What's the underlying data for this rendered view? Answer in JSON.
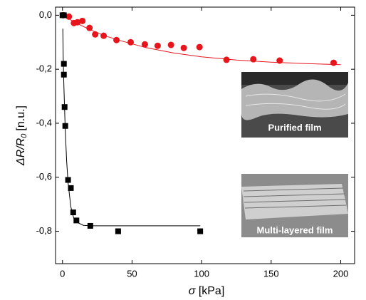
{
  "chart_data": {
    "type": "scatter",
    "x_label": {
      "symbol": "σ",
      "unit": "[kPa]"
    },
    "y_label": {
      "main": "ΔR/R",
      "sub": "0",
      "unit": "[n.u.]"
    },
    "xlim": [
      -5,
      210
    ],
    "ylim": [
      0.03,
      -0.92
    ],
    "xticks": [
      0,
      50,
      100,
      150,
      200
    ],
    "yticks": [
      {
        "value": 0,
        "label": "0,0"
      },
      {
        "value": -0.2,
        "label": "-0,2"
      },
      {
        "value": -0.4,
        "label": "-0,4"
      },
      {
        "value": -0.6,
        "label": "-0,6"
      },
      {
        "value": -0.8,
        "label": "-0,8"
      }
    ],
    "series": [
      {
        "color": "#e8141c",
        "marker": "circle",
        "x": [
          0.5,
          4.6,
          8.2,
          10.7,
          14.3,
          19.4,
          23.5,
          29.6,
          38.8,
          49,
          59.2,
          68.4,
          78,
          87.2,
          98.5,
          117.9,
          137.2,
          156.1,
          194.9
        ],
        "values": [
          0,
          -0.005,
          -0.029,
          -0.026,
          -0.021,
          -0.047,
          -0.071,
          -0.076,
          -0.092,
          -0.1,
          -0.108,
          -0.113,
          -0.11,
          -0.121,
          -0.118,
          -0.165,
          -0.163,
          -0.168,
          -0.176
        ]
      },
      {
        "color": "#000000",
        "marker": "square",
        "x": [
          0,
          1,
          1,
          1,
          1.5,
          2,
          4,
          6,
          7.7,
          10,
          20,
          40,
          99
        ],
        "values": [
          0,
          0,
          -0.18,
          -0.22,
          -0.34,
          -0.41,
          -0.61,
          -0.64,
          -0.73,
          -0.76,
          -0.78,
          -0.8,
          -0.8
        ]
      }
    ],
    "fits": [
      {
        "color": "#e8141c",
        "x": [
          0,
          10,
          20,
          30,
          40,
          60,
          80,
          100,
          125,
          150,
          175,
          200
        ],
        "values": [
          0,
          -0.029,
          -0.054,
          -0.075,
          -0.092,
          -0.12,
          -0.14,
          -0.154,
          -0.166,
          -0.174,
          -0.179,
          -0.183
        ]
      },
      {
        "color": "#000000",
        "x": [
          0.2,
          0.5,
          1,
          2,
          3,
          4,
          6,
          8,
          10,
          15,
          20,
          40,
          99
        ],
        "values": [
          -0.05,
          -0.15,
          -0.26,
          -0.43,
          -0.54,
          -0.62,
          -0.71,
          -0.75,
          -0.766,
          -0.778,
          -0.78,
          -0.78,
          -0.78
        ]
      }
    ],
    "insets": [
      {
        "label": "Purified film"
      },
      {
        "label": "Multi-layered film"
      }
    ]
  }
}
